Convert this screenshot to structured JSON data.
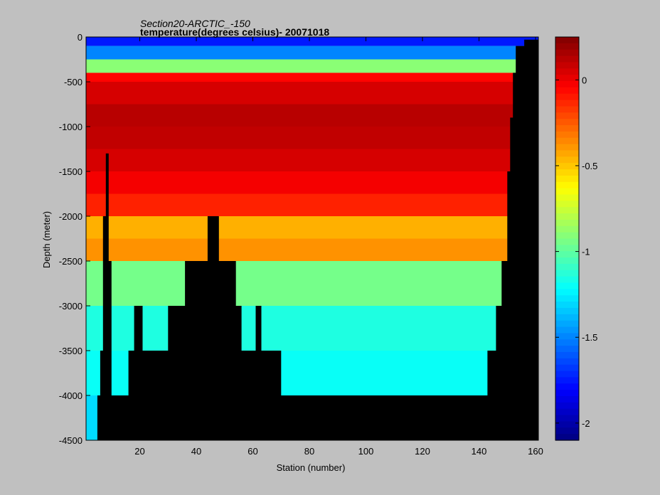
{
  "chart_data": {
    "type": "heatmap",
    "title": "Section20-ARCTIC_-150",
    "subtitle": "temperature(degrees celsius)- 20071018",
    "xlabel": "Station (number)",
    "ylabel": "Depth (meter)",
    "xlim": [
      1,
      161
    ],
    "ylim": [
      -4500,
      0
    ],
    "xticks": [
      20,
      40,
      60,
      80,
      100,
      120,
      140,
      160
    ],
    "xtick_labels": [
      "20",
      "40",
      "60",
      "80",
      "100",
      "120",
      "140",
      "160"
    ],
    "yticks": [
      0,
      -500,
      -1000,
      -1500,
      -2000,
      -2500,
      -3000,
      -3500,
      -4000,
      -4500
    ],
    "ytick_labels": [
      "0",
      "-500",
      "-1000",
      "-1500",
      "-2000",
      "-2500",
      "-3000",
      "-3500",
      "-4000",
      "-4500"
    ],
    "colorbar": {
      "range": [
        -2.1,
        0.25
      ],
      "ticks": [
        0,
        -0.5,
        -1,
        -1.5,
        -2
      ],
      "tick_labels": [
        "0",
        "-0.5",
        "-1",
        "-1.5",
        "-2"
      ],
      "colormap": "jet"
    },
    "mask_color": "#000000",
    "depth_layers": [
      {
        "top": 0,
        "bottom": -100,
        "value": -1.75
      },
      {
        "top": -100,
        "bottom": -250,
        "value": -1.5
      },
      {
        "top": -250,
        "bottom": -400,
        "value": -0.9
      },
      {
        "top": -400,
        "bottom": -500,
        "value": -0.05
      },
      {
        "top": -500,
        "bottom": -750,
        "value": 0.05
      },
      {
        "top": -750,
        "bottom": -1000,
        "value": 0.12
      },
      {
        "top": -1000,
        "bottom": -1250,
        "value": 0.1
      },
      {
        "top": -1250,
        "bottom": -1500,
        "value": 0.05
      },
      {
        "top": -1500,
        "bottom": -1750,
        "value": -0.02
      },
      {
        "top": -1750,
        "bottom": -2000,
        "value": -0.12
      },
      {
        "top": -2000,
        "bottom": -2250,
        "value": -0.45
      },
      {
        "top": -2250,
        "bottom": -2500,
        "value": -0.38
      },
      {
        "top": -2500,
        "bottom": -3000,
        "value": -0.95
      },
      {
        "top": -3000,
        "bottom": -3500,
        "value": -1.15
      },
      {
        "top": -3500,
        "bottom": -4000,
        "value": -1.2
      },
      {
        "top": -4000,
        "bottom": -4500,
        "value": -1.3
      }
    ],
    "bottom_depth": [
      {
        "station": 1,
        "depth": -4500
      },
      {
        "station": 2,
        "depth": -4500
      },
      {
        "station": 3,
        "depth": -4500
      },
      {
        "station": 5,
        "depth": -4000
      },
      {
        "station": 6,
        "depth": -3500
      },
      {
        "station": 7,
        "depth": -2000
      },
      {
        "station": 8,
        "depth": -1300
      },
      {
        "station": 9,
        "depth": -2500
      },
      {
        "station": 10,
        "depth": -4000
      },
      {
        "station": 16,
        "depth": -3500
      },
      {
        "station": 18,
        "depth": -3000
      },
      {
        "station": 21,
        "depth": -3500
      },
      {
        "station": 30,
        "depth": -3000
      },
      {
        "station": 36,
        "depth": -2500
      },
      {
        "station": 44,
        "depth": -2000
      },
      {
        "station": 48,
        "depth": -2500
      },
      {
        "station": 54,
        "depth": -3000
      },
      {
        "station": 56,
        "depth": -3500
      },
      {
        "station": 61,
        "depth": -3000
      },
      {
        "station": 63,
        "depth": -3500
      },
      {
        "station": 70,
        "depth": -4000
      },
      {
        "station": 143,
        "depth": -3500
      },
      {
        "station": 146,
        "depth": -3000
      },
      {
        "station": 148,
        "depth": -2500
      },
      {
        "station": 150,
        "depth": -1500
      },
      {
        "station": 151,
        "depth": -900
      },
      {
        "station": 152,
        "depth": -400
      },
      {
        "station": 153,
        "depth": -100
      },
      {
        "station": 156,
        "depth": -30
      },
      {
        "station": 161,
        "depth": 0
      }
    ]
  }
}
